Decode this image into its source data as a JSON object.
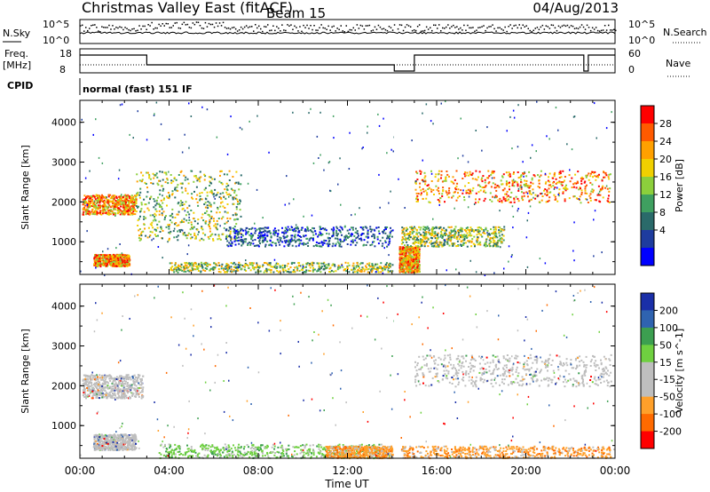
{
  "header": {
    "title": "Christmas Valley East (fitACF)",
    "beam": "Beam 15",
    "date": "04/Aug/2013"
  },
  "strips": {
    "nsky_label": "N.Sky",
    "nsky_ticks": [
      "10^5",
      "10^0"
    ],
    "nsearch_label": "N.Search",
    "nsearch_ticks": [
      "10^5",
      "10^0"
    ],
    "freq_label": "Freq.",
    "freq_unit": "[MHz]",
    "freq_ticks": [
      "18",
      "8"
    ],
    "nave_label": "Nave",
    "nave_ticks": [
      "60",
      "0"
    ],
    "cpid_label": "CPID",
    "cpid_value": "normal (fast) 151 IF"
  },
  "chart_data": [
    {
      "type": "heatmap",
      "panel": "power",
      "ylabel": "Slant Range [km]",
      "yticks": [
        1000,
        2000,
        3000,
        4000
      ],
      "ylim": [
        180,
        4550
      ],
      "xlabel": "",
      "xticks": [
        "00:00",
        "04:00",
        "08:00",
        "12:00",
        "16:00",
        "20:00",
        "00:00"
      ],
      "xlim_hours": [
        0,
        24
      ],
      "data_gap_hours": [
        14.1,
        14.2
      ],
      "colorbar": {
        "label": "Power [dB]",
        "ticks": [
          "28",
          "24",
          "20",
          "16",
          "12",
          "8",
          "4"
        ],
        "colors": [
          "#ff0000",
          "#ff5a00",
          "#ffa000",
          "#f0d000",
          "#8ccf3c",
          "#3fa060",
          "#2a6a6a",
          "#1e3c9e",
          "#0000ff"
        ]
      },
      "scatter_bands": [
        {
          "t": [
            0.1,
            2.5
          ],
          "r": [
            1700,
            2200
          ],
          "level": "high"
        },
        {
          "t": [
            0.6,
            2.2
          ],
          "r": [
            400,
            700
          ],
          "level": "high"
        },
        {
          "t": [
            2.5,
            7.2
          ],
          "r": [
            1050,
            2800
          ],
          "level": "mid"
        },
        {
          "t": [
            4.0,
            14.0
          ],
          "r": [
            250,
            500
          ],
          "level": "mid"
        },
        {
          "t": [
            6.5,
            14.0
          ],
          "r": [
            900,
            1400
          ],
          "level": "low"
        },
        {
          "t": [
            14.3,
            15.2
          ],
          "r": [
            250,
            900
          ],
          "level": "high"
        },
        {
          "t": [
            14.4,
            19.0
          ],
          "r": [
            900,
            1400
          ],
          "level": "mid"
        },
        {
          "t": [
            15.0,
            23.8
          ],
          "r": [
            2000,
            2800
          ],
          "level": "high"
        }
      ]
    },
    {
      "type": "heatmap",
      "panel": "velocity",
      "ylabel": "Slant Range [km]",
      "yticks": [
        1000,
        2000,
        3000,
        4000
      ],
      "ylim": [
        180,
        4550
      ],
      "xlabel": "Time UT",
      "xticks": [
        "00:00",
        "04:00",
        "08:00",
        "12:00",
        "16:00",
        "20:00",
        "00:00"
      ],
      "xlim_hours": [
        0,
        24
      ],
      "data_gap_hours": [
        14.1,
        14.2
      ],
      "colorbar": {
        "label": "Velocity [m s^-1]",
        "ticks": [
          "200",
          "100",
          "50",
          "15",
          "-15",
          "-50",
          "-100",
          "-200"
        ],
        "colors": [
          "#1a2fa8",
          "#2f63b0",
          "#3c9f50",
          "#6fd040",
          "#bebebe",
          "#bebebe",
          "#ffa02a",
          "#ff6a00",
          "#ff0000"
        ]
      },
      "scatter_bands": [
        {
          "t": [
            0.1,
            2.8
          ],
          "r": [
            1700,
            2300
          ],
          "level": "gray"
        },
        {
          "t": [
            0.6,
            2.5
          ],
          "r": [
            400,
            800
          ],
          "level": "gray"
        },
        {
          "t": [
            3.5,
            13.5
          ],
          "r": [
            200,
            550
          ],
          "level": "green"
        },
        {
          "t": [
            11.0,
            14.0
          ],
          "r": [
            200,
            500
          ],
          "level": "orange"
        },
        {
          "t": [
            15.0,
            23.8
          ],
          "r": [
            2000,
            2800
          ],
          "level": "gray"
        },
        {
          "t": [
            14.4,
            23.8
          ],
          "r": [
            200,
            500
          ],
          "level": "orange"
        }
      ]
    }
  ]
}
